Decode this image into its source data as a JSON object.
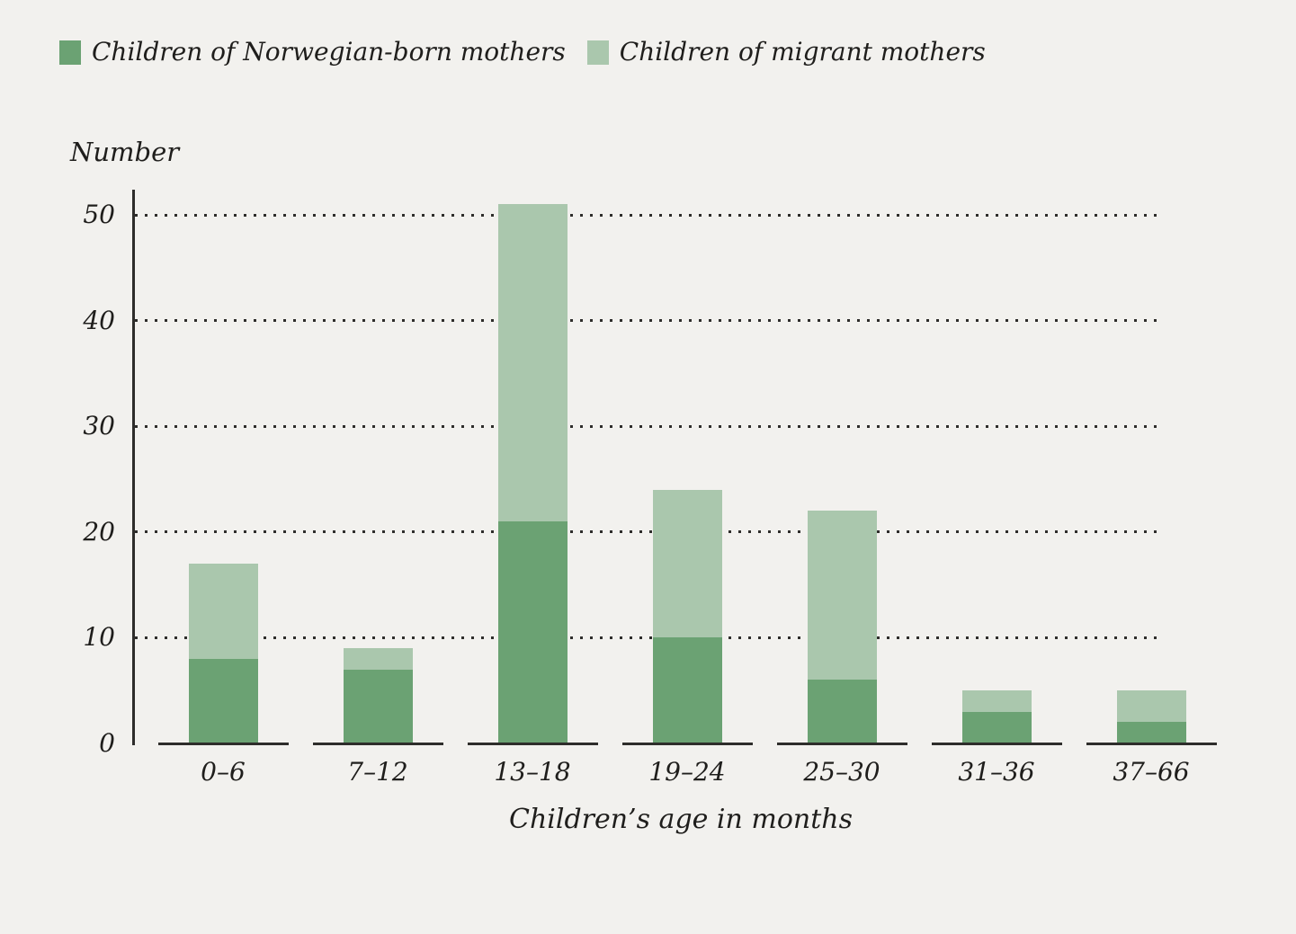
{
  "colors": {
    "background": "#f2f1ee",
    "text": "#1f1e1c",
    "axis": "#2e2d2b",
    "series_norwegian": "#6ba273",
    "series_migrant": "#aac7ad"
  },
  "legend": {
    "items": [
      {
        "label": "Children of Norwegian-born mothers",
        "color": "#6ba273"
      },
      {
        "label": "Children of migrant mothers",
        "color": "#aac7ad"
      }
    ]
  },
  "chart_data": {
    "type": "bar",
    "stacked": true,
    "title": "",
    "ylabel": "Number",
    "xlabel": "Children’s age in months",
    "categories": [
      "0–6",
      "7–12",
      "13–18",
      "19–24",
      "25–30",
      "31–36",
      "37–66"
    ],
    "series": [
      {
        "name": "Children of Norwegian-born mothers",
        "color": "#6ba273",
        "values": [
          8,
          7,
          21,
          10,
          6,
          3,
          2
        ]
      },
      {
        "name": "Children of migrant mothers",
        "color": "#aac7ad",
        "values": [
          9,
          2,
          30,
          14,
          16,
          2,
          3
        ]
      }
    ],
    "totals": [
      17,
      9,
      51,
      24,
      22,
      5,
      5
    ],
    "ylim": [
      0,
      50
    ],
    "yticks": [
      0,
      10,
      20,
      30,
      40,
      50
    ],
    "grid": "dotted-horizontal",
    "legend_position": "top-left"
  }
}
